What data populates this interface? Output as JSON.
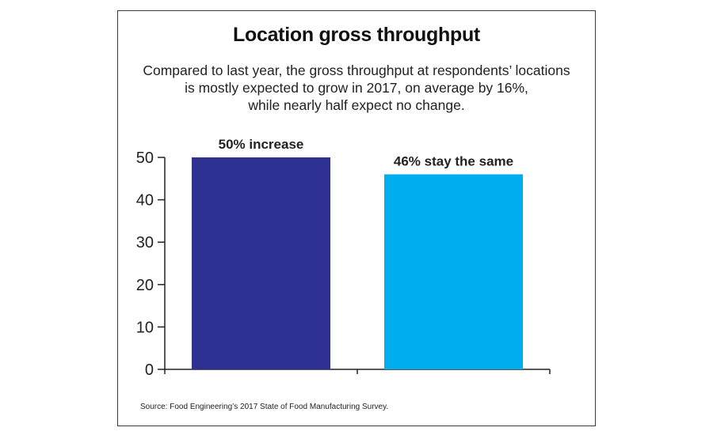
{
  "title": "Location gross throughput",
  "subtitle": "Compared to last year, the gross throughput at respondents’ locations\nis mostly expected to grow in 2017, on average by 16%,\nwhile nearly half expect no change.",
  "source": "Source: Food Engineering’s 2017 State of Food Manufacturing Survey.",
  "colors": {
    "bar_increase": "#2e3192",
    "bar_same": "#00aeef",
    "axis": "#222222"
  },
  "chart_data": {
    "type": "bar",
    "categories": [
      "50% increase",
      "46% stay the same"
    ],
    "values": [
      50,
      46
    ],
    "data_labels": [
      "50% increase",
      "46% stay the same"
    ],
    "title": "Location gross throughput",
    "xlabel": "",
    "ylabel": "",
    "ylim": [
      0,
      50
    ],
    "yticks": [
      0,
      10,
      20,
      30,
      40,
      50
    ],
    "grid": false,
    "legend": "none"
  }
}
